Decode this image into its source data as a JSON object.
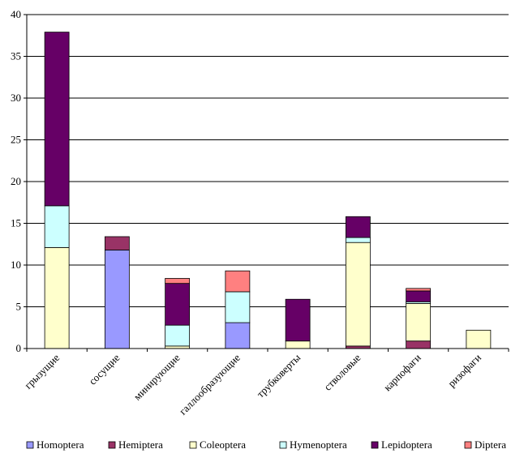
{
  "chart_data": {
    "type": "bar",
    "stacked": true,
    "categories": [
      "грызущие",
      "сосущие",
      "минирующие",
      "галлообразующие",
      "трубковерты",
      "стволовые",
      "карпофаги",
      "ризофаги"
    ],
    "series": [
      {
        "name": "Homoptera",
        "color": "#9999ff",
        "values": [
          0,
          11.8,
          0,
          3.1,
          0,
          0,
          0,
          0
        ]
      },
      {
        "name": "Hemiptera",
        "color": "#993366",
        "values": [
          0,
          1.6,
          0,
          0,
          0,
          0.3,
          0.9,
          0
        ]
      },
      {
        "name": "Coleoptera",
        "color": "#ffffcc",
        "values": [
          12.1,
          0,
          0.3,
          0,
          0.9,
          12.4,
          4.5,
          2.2
        ]
      },
      {
        "name": "Hymenoptera",
        "color": "#ccffff",
        "values": [
          5,
          0,
          2.5,
          3.7,
          0,
          0.6,
          0.2,
          0
        ]
      },
      {
        "name": "Lepidoptera",
        "color": "#660066",
        "values": [
          20.8,
          0,
          5.0,
          0,
          5.0,
          2.5,
          1.3,
          0
        ]
      },
      {
        "name": "Diptera",
        "color": "#ff8080",
        "values": [
          0,
          0,
          0.6,
          2.5,
          0,
          0,
          0.3,
          0
        ]
      }
    ],
    "ylim": [
      0,
      40
    ],
    "yticks": [
      0,
      5,
      10,
      15,
      20,
      25,
      30,
      35,
      40
    ],
    "grid": true,
    "legend": "bottom"
  }
}
